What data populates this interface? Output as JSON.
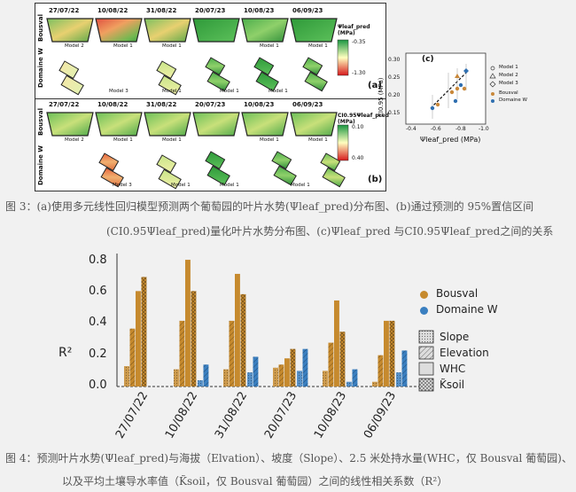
{
  "fig3": {
    "dates": [
      "27/07/22",
      "10/08/22",
      "31/08/22",
      "20/07/23",
      "10/08/23",
      "06/09/23"
    ],
    "row_labels": [
      "Bousval",
      "Domaine W"
    ],
    "panel_a": {
      "bousval_models": [
        "Model 2",
        "Model 1",
        "Model 1",
        "",
        "Model 1",
        "Model 1"
      ],
      "domaine_models": [
        "Model 3",
        "Model 1",
        "",
        "Model 1",
        "Model 1",
        ""
      ],
      "colorbar_title": "Ψleaf_pred (MPa)",
      "colorbar_top": "-0.35",
      "colorbar_bottom": "-1.30",
      "label": "(a)"
    },
    "panel_b": {
      "bousval_models": [
        "Model 2",
        "Model 1",
        "Model 1",
        "",
        "Model 1",
        "Model 1"
      ],
      "domaine_models": [
        "Model 3",
        "Model 1",
        "Model 1",
        "",
        "Model 1",
        ""
      ],
      "colorbar_title": "CI0.95Ψleaf_pred (MPa)",
      "colorbar_top": "0.10",
      "colorbar_bottom": "0.40",
      "label": "(b)"
    },
    "panel_c": {
      "label": "(c)",
      "ylabel": "CI0.95 (MPa)",
      "xlabel": "Ψleaf_pred (MPa)",
      "yticks": [
        "0.30",
        "0.25",
        "0.20",
        "0.15"
      ],
      "xticks": [
        "-0.4",
        "-0.6",
        "-0.8",
        "-1.0"
      ],
      "legend": [
        "Model 1",
        "Model 2",
        "Model 3",
        "Bousval",
        "Domaine W"
      ]
    }
  },
  "captions": {
    "fig3_line1": "图 3：(a)使用多元线性回归模型预测两个葡萄园的叶片水势(Ψleaf_pred)分布图、(b)通过预测的 95%置信区间",
    "fig3_line2": "(CI0.95Ψleaf_pred)量化叶片水势分布图、(c)Ψleaf_pred 与CI0.95Ψleaf_pred之间的关系",
    "fig4_line1": "图 4：预测叶片水势(Ψleaf_pred)与海拔（Elvation）、坡度（Slope）、2.5 米处持水量(WHC，仅 Bousval 葡萄园)、",
    "fig4_line2": "以及平均土壤导水率值（K̃soil，仅 Bousval 葡萄园）之间的线性相关系数（R²）"
  },
  "chart_data": {
    "type": "bar",
    "ylabel": "R²",
    "ylim": [
      0,
      0.85
    ],
    "yticks": [
      0.0,
      0.2,
      0.4,
      0.6,
      0.8
    ],
    "categories": [
      "27/07/22",
      "10/08/22",
      "31/08/22",
      "20/07/23",
      "10/08/23",
      "06/09/23"
    ],
    "variables": [
      "Slope",
      "Elevation",
      "WHC",
      "K̃soil"
    ],
    "series": [
      {
        "name": "Bousval",
        "color": "#c68a2e",
        "values": [
          [
            0.13,
            0.37,
            0.61,
            0.7
          ],
          [
            0.11,
            0.42,
            0.81,
            0.61
          ],
          [
            0.11,
            0.42,
            0.72,
            0.59
          ],
          [
            0.12,
            0.14,
            0.18,
            0.24
          ],
          [
            0.1,
            0.28,
            0.55,
            0.35
          ],
          [
            0.03,
            0.2,
            0.42,
            0.42
          ]
        ]
      },
      {
        "name": "Domaine W",
        "color": "#3a7fc0",
        "values": [
          [
            null,
            null
          ],
          [
            0.04,
            0.14
          ],
          [
            0.09,
            0.19
          ],
          [
            0.1,
            0.24
          ],
          [
            0.03,
            0.11
          ],
          [
            0.09,
            0.23
          ]
        ]
      }
    ],
    "legend_series": [
      "Bousval",
      "Domaine W"
    ],
    "legend_patterns": [
      "Slope",
      "Elevation",
      "WHC",
      "K̃soil"
    ]
  }
}
